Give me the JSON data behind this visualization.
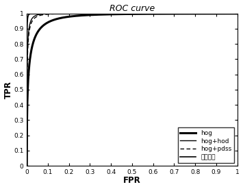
{
  "title": "ROC curve",
  "xlabel": "FPR",
  "ylabel": "TPR",
  "xlim": [
    0,
    1
  ],
  "ylim": [
    0,
    1
  ],
  "xticks": [
    0,
    0.1,
    0.2,
    0.3,
    0.4,
    0.5,
    0.6,
    0.7,
    0.8,
    0.9,
    1
  ],
  "yticks": [
    0,
    0.1,
    0.2,
    0.3,
    0.4,
    0.5,
    0.6,
    0.7,
    0.8,
    0.9,
    1
  ],
  "legend_labels": [
    "hog",
    "hog+hod",
    "hog+pdss",
    "本文算法"
  ],
  "legend_loc": "lower right",
  "background_color": "#ffffff",
  "curves": {
    "hog": {
      "color": "#000000",
      "linewidth": 2.2,
      "linestyle": "solid"
    },
    "hog+hod": {
      "color": "#000000",
      "linewidth": 1.0,
      "linestyle": "solid"
    },
    "hog+pdss": {
      "color": "#000000",
      "linewidth": 1.0,
      "linestyle": "dashed"
    },
    "ben_wen": {
      "color": "#000000",
      "linewidth": 1.2,
      "linestyle": "solid"
    }
  }
}
